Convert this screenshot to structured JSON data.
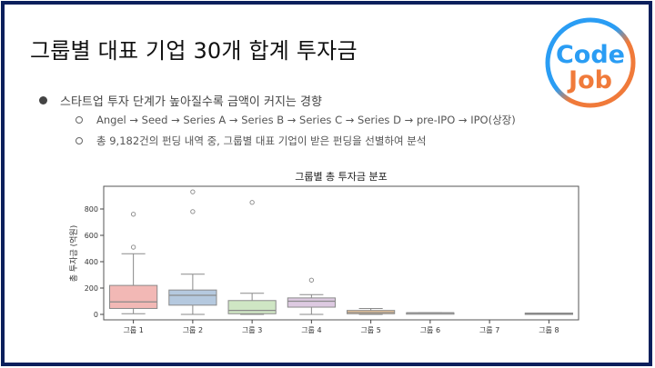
{
  "slide": {
    "title": "그룹별 대표 기업 30개 합계 투자금",
    "logo": {
      "line1": "Code",
      "line2": "Job",
      "icon": "codejob-logo"
    },
    "border_color": "#0b1f5c"
  },
  "bullets": {
    "main": "스타트업 투자 단계가 높아질수록 금액이 커지는 경향",
    "sub": [
      "Angel → Seed → Series A → Series B → Series C → Series D → pre-IPO → IPO(상장)",
      "총 9,182건의 펀딩 내역 중, 그룹별 대표 기업이 받은 펀딩을 선별하여 분석"
    ]
  },
  "chart_data": {
    "type": "box",
    "title": "그룹별 총 투자금 분포",
    "xlabel": "",
    "ylabel": "총 투자금 (억원)",
    "ylim": [
      -40,
      970
    ],
    "yticks": [
      0,
      200,
      400,
      600,
      800
    ],
    "categories": [
      "그룹 1",
      "그룹 2",
      "그룹 3",
      "그룹 4",
      "그룹 5",
      "그룹 6",
      "그룹 7",
      "그룹 8"
    ],
    "colors": [
      "#f2b8b5",
      "#b5c9df",
      "#cfe6c4",
      "#ddc9e1",
      "#f1c99c",
      "#d9d9d9",
      "#ffffff",
      "#9a9a9a"
    ],
    "series": [
      {
        "name": "그룹 1",
        "whisker_low": 5,
        "q1": 45,
        "median": 95,
        "q3": 220,
        "whisker_high": 460,
        "outliers": [
          510,
          760
        ]
      },
      {
        "name": "그룹 2",
        "whisker_low": 0,
        "q1": 70,
        "median": 145,
        "q3": 185,
        "whisker_high": 305,
        "outliers": [
          780,
          930
        ]
      },
      {
        "name": "그룹 3",
        "whisker_low": 0,
        "q1": 5,
        "median": 30,
        "q3": 105,
        "whisker_high": 160,
        "outliers": [
          850
        ]
      },
      {
        "name": "그룹 4",
        "whisker_low": 0,
        "q1": 55,
        "median": 100,
        "q3": 125,
        "whisker_high": 150,
        "outliers": [
          260
        ]
      },
      {
        "name": "그룹 5",
        "whisker_low": 0,
        "q1": 5,
        "median": 15,
        "q3": 30,
        "whisker_high": 45,
        "outliers": []
      },
      {
        "name": "그룹 6",
        "whisker_low": 12,
        "q1": 12,
        "median": 12,
        "q3": 12,
        "whisker_high": 12,
        "outliers": []
      },
      {
        "name": "그룹 7",
        "whisker_low": null,
        "q1": null,
        "median": null,
        "q3": null,
        "whisker_high": null,
        "outliers": []
      },
      {
        "name": "그룹 8",
        "whisker_low": 5,
        "q1": 5,
        "median": 8,
        "q3": 10,
        "whisker_high": 10,
        "outliers": []
      }
    ],
    "grid": false,
    "legend": "none"
  }
}
